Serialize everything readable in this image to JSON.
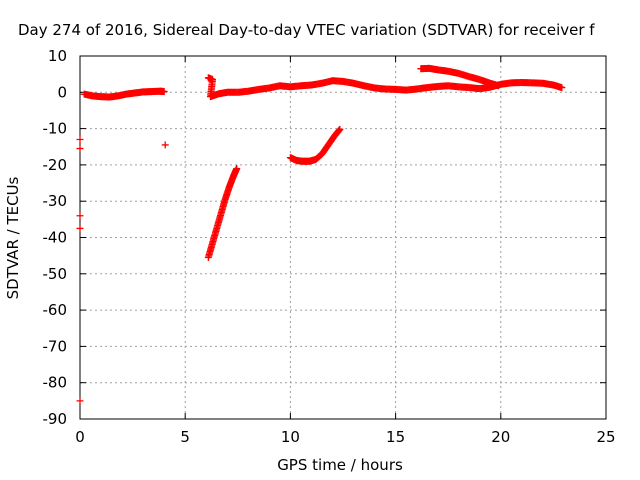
{
  "chart_data": {
    "type": "scatter",
    "title": "Day 274 of 2016, Sidereal Day-to-day VTEC variation (SDTVAR) for receiver f",
    "xlabel": "GPS time / hours",
    "ylabel": "SDTVAR / TECUs",
    "xlim": [
      0,
      25
    ],
    "ylim": [
      -90,
      10
    ],
    "xticks": [
      "0",
      "5",
      "10",
      "15",
      "20",
      "25"
    ],
    "yticks": [
      "10",
      "0",
      "-10",
      "-20",
      "-30",
      "-40",
      "-50",
      "-60",
      "-70",
      "-80",
      "-90"
    ],
    "grid": true,
    "marker": "+",
    "series": [
      {
        "color": "#ff0000",
        "points": [
          [
            0.0,
            -13
          ],
          [
            0.0,
            -15.5
          ],
          [
            0.0,
            -34
          ],
          [
            0.0,
            -37.5
          ],
          [
            0.0,
            -85
          ],
          [
            4.05,
            -14.5
          ],
          [
            0.2,
            -0.5
          ],
          [
            0.6,
            -1.0
          ],
          [
            1.0,
            -1.2
          ],
          [
            1.4,
            -1.3
          ],
          [
            1.8,
            -1.0
          ],
          [
            2.2,
            -0.5
          ],
          [
            2.6,
            -0.2
          ],
          [
            3.0,
            0.1
          ],
          [
            3.4,
            0.2
          ],
          [
            3.8,
            0.3
          ],
          [
            4.0,
            0.2
          ],
          [
            6.1,
            4.0
          ],
          [
            6.3,
            3.5
          ],
          [
            6.2,
            -1.2
          ],
          [
            6.6,
            -0.4
          ],
          [
            7.0,
            0.0
          ],
          [
            7.5,
            0.0
          ],
          [
            8.0,
            0.3
          ],
          [
            8.5,
            0.8
          ],
          [
            9.0,
            1.2
          ],
          [
            9.5,
            1.8
          ],
          [
            10.0,
            1.5
          ],
          [
            10.5,
            1.8
          ],
          [
            11.0,
            2.0
          ],
          [
            11.5,
            2.5
          ],
          [
            12.0,
            3.2
          ],
          [
            12.5,
            3.0
          ],
          [
            13.0,
            2.5
          ],
          [
            13.5,
            1.8
          ],
          [
            14.0,
            1.2
          ],
          [
            14.5,
            0.9
          ],
          [
            15.0,
            0.8
          ],
          [
            15.5,
            0.6
          ],
          [
            16.0,
            0.9
          ],
          [
            16.5,
            1.3
          ],
          [
            17.0,
            1.6
          ],
          [
            17.5,
            1.8
          ],
          [
            18.0,
            1.5
          ],
          [
            18.5,
            1.3
          ],
          [
            19.0,
            1.0
          ],
          [
            19.5,
            1.4
          ],
          [
            20.0,
            2.2
          ],
          [
            20.5,
            2.6
          ],
          [
            21.0,
            2.7
          ],
          [
            21.5,
            2.6
          ],
          [
            22.0,
            2.5
          ],
          [
            22.5,
            2.0
          ],
          [
            22.9,
            1.3
          ],
          [
            16.2,
            6.5
          ],
          [
            16.6,
            6.6
          ],
          [
            17.0,
            6.2
          ],
          [
            17.5,
            5.8
          ],
          [
            18.0,
            5.2
          ],
          [
            18.5,
            4.3
          ],
          [
            19.0,
            3.5
          ],
          [
            19.5,
            2.5
          ],
          [
            19.9,
            1.8
          ],
          [
            6.1,
            -45.5
          ],
          [
            6.3,
            -41.5
          ],
          [
            6.5,
            -37.5
          ],
          [
            6.7,
            -33.5
          ],
          [
            6.9,
            -29.5
          ],
          [
            7.1,
            -26.0
          ],
          [
            7.3,
            -23.0
          ],
          [
            7.45,
            -21.0
          ],
          [
            10.0,
            -18.0
          ],
          [
            10.3,
            -18.8
          ],
          [
            10.6,
            -19.0
          ],
          [
            10.9,
            -19.0
          ],
          [
            11.2,
            -18.5
          ],
          [
            11.5,
            -17.0
          ],
          [
            11.8,
            -14.5
          ],
          [
            12.1,
            -12.0
          ],
          [
            12.35,
            -10.2
          ]
        ]
      }
    ]
  }
}
